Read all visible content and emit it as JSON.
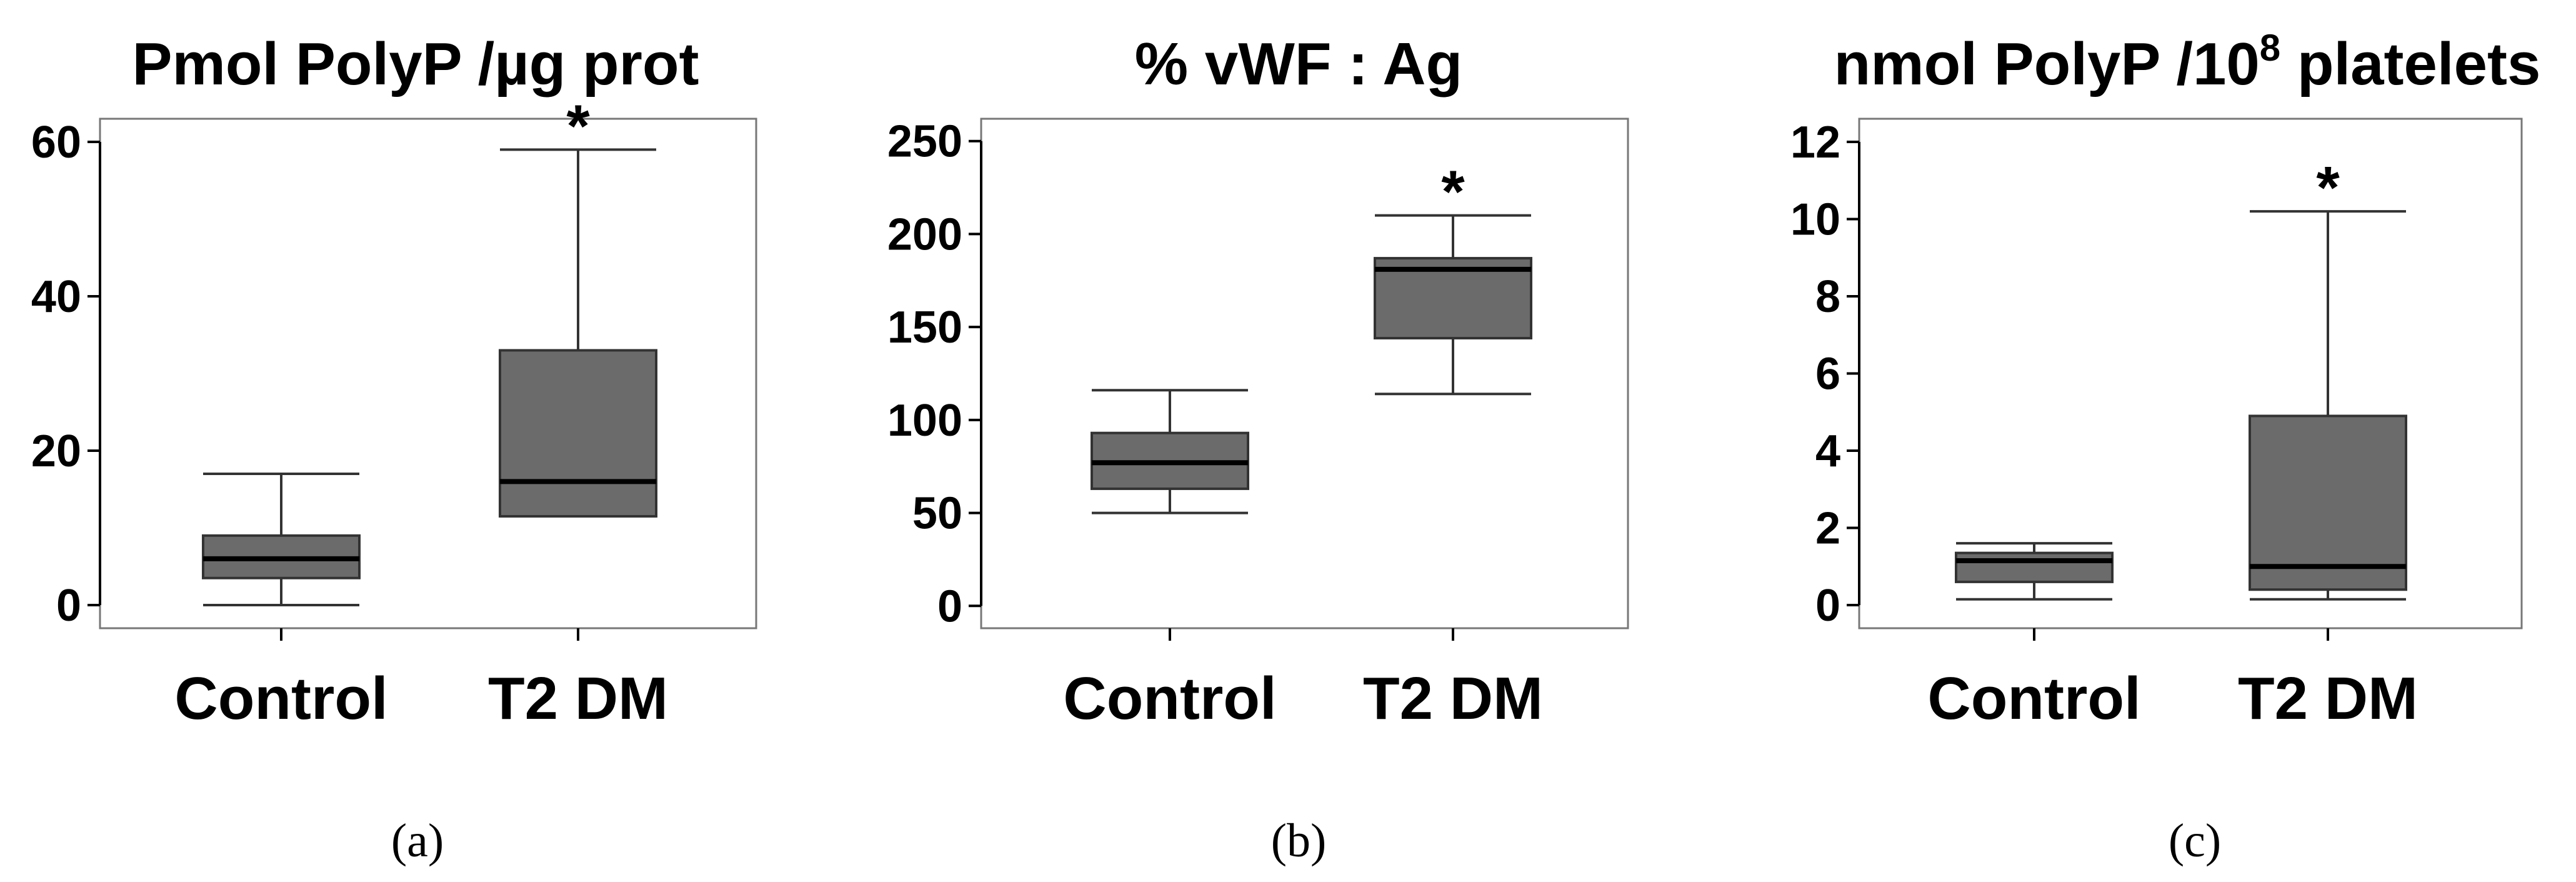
{
  "chart_data": [
    {
      "type": "box",
      "panel": "(a)",
      "title": "Pmol PolyP /µg prot",
      "title_parts": {
        "pre": "Pmol PolyP /µg prot",
        "sup": "",
        "post": ""
      },
      "ylim": [
        -3,
        63
      ],
      "yticks": [
        0,
        20,
        40,
        60
      ],
      "categories": [
        "Control",
        "T2 DM"
      ],
      "boxes": [
        {
          "name": "Control",
          "min": 0,
          "q1": 3.5,
          "median": 6,
          "q3": 9,
          "max": 17,
          "significant": false
        },
        {
          "name": "T2 DM",
          "min": 11.5,
          "q1": 11.5,
          "median": 16,
          "q3": 33,
          "max": 59,
          "significant": true
        }
      ],
      "significance_marker": "*",
      "box_color": "#6b6b6b"
    },
    {
      "type": "box",
      "panel": "(b)",
      "title": "% vWF : Ag",
      "title_parts": {
        "pre": "% vWF : Ag",
        "sup": "",
        "post": ""
      },
      "ylim": [
        -12,
        262
      ],
      "yticks": [
        0,
        50,
        100,
        150,
        200,
        250
      ],
      "categories": [
        "Control",
        "T2 DM"
      ],
      "boxes": [
        {
          "name": "Control",
          "min": 50,
          "q1": 63,
          "median": 77,
          "q3": 93,
          "max": 116,
          "significant": false
        },
        {
          "name": "T2 DM",
          "min": 114,
          "q1": 144,
          "median": 181,
          "q3": 187,
          "max": 210,
          "significant": true
        }
      ],
      "significance_marker": "*",
      "box_color": "#6b6b6b"
    },
    {
      "type": "box",
      "panel": "(c)",
      "title": "nmol PolyP /10⁸ platelets",
      "title_parts": {
        "pre": "nmol PolyP /10",
        "sup": "8",
        "post": " platelets"
      },
      "ylim": [
        -0.6,
        12.6
      ],
      "yticks": [
        0,
        2,
        4,
        6,
        8,
        10,
        12
      ],
      "categories": [
        "Control",
        "T2 DM"
      ],
      "boxes": [
        {
          "name": "Control",
          "min": 0.15,
          "q1": 0.6,
          "median": 1.15,
          "q3": 1.35,
          "max": 1.6,
          "significant": false
        },
        {
          "name": "T2 DM",
          "min": 0.15,
          "q1": 0.4,
          "median": 1.0,
          "q3": 4.9,
          "max": 10.2,
          "significant": true
        }
      ],
      "significance_marker": "*",
      "box_color": "#6b6b6b"
    }
  ]
}
